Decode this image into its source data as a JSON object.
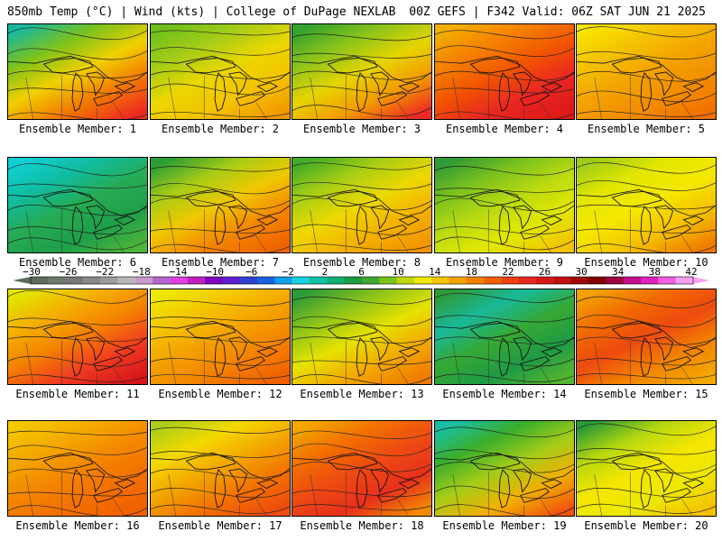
{
  "header": {
    "left": "850mb Temp (°C) | Wind (kts) | College of DuPage NEXLAB",
    "right": "00Z GEFS | F342 Valid: 06Z SAT JUN 21 2025"
  },
  "member_prefix": "Ensemble Member: ",
  "members": [
    {
      "id": "1",
      "colors": [
        "#17b8a0",
        "#7cc21c",
        "#f0d000",
        "#f37a00",
        "#ee2a22"
      ]
    },
    {
      "id": "2",
      "colors": [
        "#6fbf1a",
        "#a5cc18",
        "#ead700",
        "#f4c200",
        "#f29800"
      ]
    },
    {
      "id": "3",
      "colors": [
        "#34a32f",
        "#8dc41a",
        "#e6d400",
        "#f39a00",
        "#ed2b24"
      ]
    },
    {
      "id": "4",
      "colors": [
        "#f3b000",
        "#f48200",
        "#f25400",
        "#ea2622",
        "#dd1a18"
      ]
    },
    {
      "id": "5",
      "colors": [
        "#f6e500",
        "#f4c200",
        "#f3a300",
        "#f28d00",
        "#f17000"
      ]
    },
    {
      "id": "6",
      "colors": [
        "#0fcfd2",
        "#10bca0",
        "#26ab52",
        "#1e9f4a",
        "#4db53a"
      ]
    },
    {
      "id": "7",
      "colors": [
        "#2a9c36",
        "#a8cc15",
        "#f0c800",
        "#f38500",
        "#f06400"
      ]
    },
    {
      "id": "8",
      "colors": [
        "#42ab27",
        "#a8ce14",
        "#edd800",
        "#f3b000",
        "#f29400"
      ]
    },
    {
      "id": "9",
      "colors": [
        "#2e9a38",
        "#7cc21c",
        "#bddb10",
        "#e3e700",
        "#f3c200"
      ]
    },
    {
      "id": "10",
      "colors": [
        "#9dcc18",
        "#e2e600",
        "#f5e800",
        "#f4c000",
        "#f07a00"
      ]
    },
    {
      "id": "11",
      "colors": [
        "#e2e600",
        "#f3b000",
        "#f48200",
        "#f03c20",
        "#d7151c"
      ]
    },
    {
      "id": "12",
      "colors": [
        "#ede800",
        "#f4c400",
        "#f3a000",
        "#f38000",
        "#f06000"
      ]
    },
    {
      "id": "13",
      "colors": [
        "#2e9a38",
        "#8dc41a",
        "#e6e200",
        "#f3a800",
        "#f07a00"
      ]
    },
    {
      "id": "14",
      "colors": [
        "#2e9a38",
        "#19b89a",
        "#36a833",
        "#1e9a45",
        "#55b52e"
      ]
    },
    {
      "id": "15",
      "colors": [
        "#f2a200",
        "#f06a00",
        "#ee4a10",
        "#f28400",
        "#f3a800"
      ]
    },
    {
      "id": "16",
      "colors": [
        "#f4c800",
        "#f3a800",
        "#f48600",
        "#f27000",
        "#f06000"
      ]
    },
    {
      "id": "17",
      "colors": [
        "#aacf16",
        "#f4d800",
        "#f3a400",
        "#f27000",
        "#ee4a10"
      ]
    },
    {
      "id": "18",
      "colors": [
        "#f3a800",
        "#f27000",
        "#ee4a12",
        "#e8301c",
        "#f28a00"
      ]
    },
    {
      "id": "19",
      "colors": [
        "#17c0a6",
        "#3aae2b",
        "#a5cc18",
        "#f3b000",
        "#ef5410"
      ]
    },
    {
      "id": "20",
      "colors": [
        "#2a9c36",
        "#b8d80e",
        "#f5e600",
        "#ede800",
        "#f4c000"
      ]
    }
  ],
  "colorbar": {
    "labels": [
      "-30",
      "-26",
      "-22",
      "-18",
      "-14",
      "-10",
      "-6",
      "-2",
      "2",
      "6",
      "10",
      "14",
      "18",
      "22",
      "26",
      "30",
      "34",
      "38",
      "42"
    ],
    "colors": [
      "#5c6b5c",
      "#6a7a6a",
      "#787878",
      "#888888",
      "#9c9c9c",
      "#b8b8b8",
      "#cc99cc",
      "#b266cc",
      "#e040e0",
      "#c020c0",
      "#8000c0",
      "#6020d0",
      "#3040d0",
      "#1860e0",
      "#10a0e8",
      "#18d0e0",
      "#10c0a0",
      "#10b070",
      "#209a40",
      "#40a830",
      "#7cc21c",
      "#c0d810",
      "#f0e800",
      "#f4c800",
      "#f4a400",
      "#f38000",
      "#f26000",
      "#ee4010",
      "#e82820",
      "#d81818",
      "#c01010",
      "#a00808",
      "#800000",
      "#a00040",
      "#c0108a",
      "#e020c0",
      "#f060e0",
      "#f8a0f0"
    ]
  }
}
